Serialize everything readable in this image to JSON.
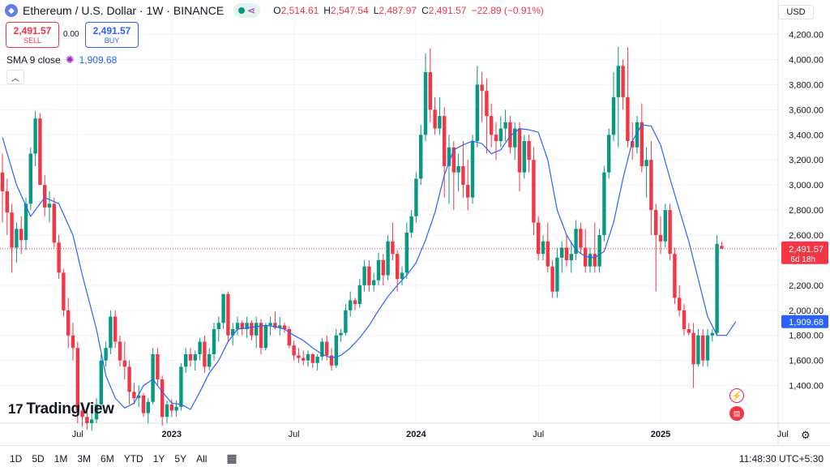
{
  "header": {
    "symbol": "Ethereum / U.S. Dollar · 1W · BINANCE",
    "open_label": "O",
    "open": "2,514.61",
    "high_label": "H",
    "high": "2,547.54",
    "low_label": "L",
    "low": "2,487.97",
    "close_label": "C",
    "close": "2,491.57",
    "change": "−22.89 (−0.91%)"
  },
  "trade": {
    "sell_price": "2,491.57",
    "sell_label": "SELL",
    "spread": "0.00",
    "buy_price": "2,491.57",
    "buy_label": "BUY"
  },
  "indicator": {
    "name": "SMA 9 close",
    "value": "1,909.68"
  },
  "currency": "USD",
  "logo_text": "TradingView",
  "bottom": {
    "ranges": [
      "1D",
      "5D",
      "1M",
      "3M",
      "6M",
      "YTD",
      "1Y",
      "5Y",
      "All"
    ],
    "clock": "11:48:30 UTC+5:30"
  },
  "colors": {
    "up": "#089981",
    "down": "#f23645",
    "sma": "#2962ff",
    "grid": "#f0f3fa"
  },
  "chart_data": {
    "type": "candlestick",
    "title": "Ethereum / U.S. Dollar · 1W · BINANCE",
    "ylim": [
      1100,
      4320
    ],
    "y_ticks": [
      1400,
      1600,
      1800,
      2000,
      2200,
      2400,
      2600,
      2800,
      3000,
      3200,
      3400,
      3600,
      3800,
      4000,
      4200
    ],
    "y_tick_labels": [
      "1,400.00",
      "1,600.00",
      "1,800.00",
      "2,000.00",
      "2,200.00",
      "2,400.00",
      "2,600.00",
      "2,800.00",
      "3,000.00",
      "3,200.00",
      "3,400.00",
      "3,600.00",
      "3,800.00",
      "4,000.00",
      "4,200.00"
    ],
    "x_ticks": [
      {
        "label": "Jul",
        "index": 16,
        "bold": false
      },
      {
        "label": "2023",
        "index": 36,
        "bold": true
      },
      {
        "label": "Jul",
        "index": 62,
        "bold": false
      },
      {
        "label": "2024",
        "index": 88,
        "bold": true
      },
      {
        "label": "Jul",
        "index": 114,
        "bold": false
      },
      {
        "label": "2025",
        "index": 140,
        "bold": true
      },
      {
        "label": "Jul",
        "index": 166,
        "bold": false
      }
    ],
    "last_price": 2491.57,
    "last_price_label": "2,491.57",
    "countdown": "6d 18h",
    "sma_last": 1909.68,
    "sma_last_label": "1,909.68",
    "candles": [
      [
        3100,
        3250,
        2700,
        2950
      ],
      [
        2950,
        3050,
        2600,
        2780
      ],
      [
        2780,
        2850,
        2300,
        2500
      ],
      [
        2500,
        2700,
        2380,
        2650
      ],
      [
        2650,
        2750,
        2450,
        2560
      ],
      [
        2560,
        2900,
        2480,
        2850
      ],
      [
        2850,
        3300,
        2800,
        3250
      ],
      [
        3250,
        3590,
        3150,
        3530
      ],
      [
        3530,
        3570,
        3000,
        3000
      ],
      [
        3000,
        3080,
        2750,
        2820
      ],
      [
        2820,
        2950,
        2700,
        2850
      ],
      [
        2850,
        2900,
        2500,
        2540
      ],
      [
        2540,
        2600,
        2250,
        2300
      ],
      [
        2300,
        2330,
        1950,
        2000
      ],
      [
        2000,
        2100,
        1700,
        1800
      ],
      [
        1800,
        1900,
        1600,
        1700
      ],
      [
        1700,
        1750,
        1100,
        1200
      ],
      [
        1200,
        1250,
        1070,
        1150
      ],
      [
        1150,
        1200,
        1050,
        1100
      ],
      [
        1100,
        1180,
        1040,
        1130
      ],
      [
        1130,
        1300,
        1100,
        1250
      ],
      [
        1250,
        1650,
        1200,
        1600
      ],
      [
        1600,
        1750,
        1550,
        1700
      ],
      [
        1700,
        2000,
        1650,
        1950
      ],
      [
        1950,
        2000,
        1700,
        1750
      ],
      [
        1750,
        1800,
        1550,
        1600
      ],
      [
        1600,
        1750,
        1450,
        1550
      ],
      [
        1550,
        1600,
        1250,
        1350
      ],
      [
        1350,
        1420,
        1250,
        1300
      ],
      [
        1300,
        1400,
        1230,
        1320
      ],
      [
        1320,
        1340,
        1150,
        1180
      ],
      [
        1180,
        1300,
        1100,
        1270
      ],
      [
        1270,
        1700,
        1250,
        1650
      ],
      [
        1650,
        1700,
        1400,
        1450
      ],
      [
        1450,
        1480,
        1080,
        1150
      ],
      [
        1150,
        1280,
        1100,
        1250
      ],
      [
        1250,
        1290,
        1150,
        1200
      ],
      [
        1200,
        1280,
        1150,
        1230
      ],
      [
        1230,
        1580,
        1200,
        1550
      ],
      [
        1550,
        1700,
        1500,
        1650
      ],
      [
        1650,
        1700,
        1550,
        1600
      ],
      [
        1600,
        1680,
        1520,
        1650
      ],
      [
        1650,
        1780,
        1600,
        1750
      ],
      [
        1750,
        1800,
        1500,
        1550
      ],
      [
        1550,
        1700,
        1520,
        1650
      ],
      [
        1650,
        1900,
        1600,
        1850
      ],
      [
        1850,
        1950,
        1750,
        1900
      ],
      [
        1900,
        2100,
        1850,
        2130
      ],
      [
        2130,
        2150,
        1750,
        1800
      ],
      [
        1800,
        1900,
        1720,
        1850
      ],
      [
        1850,
        1950,
        1800,
        1900
      ],
      [
        1900,
        1920,
        1800,
        1850
      ],
      [
        1850,
        1950,
        1780,
        1900
      ],
      [
        1900,
        1920,
        1760,
        1800
      ],
      [
        1800,
        1950,
        1700,
        1900
      ],
      [
        1900,
        1930,
        1650,
        1700
      ],
      [
        1700,
        1900,
        1680,
        1880
      ],
      [
        1880,
        1950,
        1800,
        1900
      ],
      [
        1900,
        1990,
        1850,
        1860
      ],
      [
        1860,
        1950,
        1800,
        1880
      ],
      [
        1880,
        1900,
        1820,
        1850
      ],
      [
        1850,
        1870,
        1700,
        1720
      ],
      [
        1720,
        1760,
        1600,
        1640
      ],
      [
        1640,
        1700,
        1580,
        1620
      ],
      [
        1620,
        1680,
        1560,
        1600
      ],
      [
        1600,
        1680,
        1550,
        1650
      ],
      [
        1650,
        1660,
        1540,
        1580
      ],
      [
        1580,
        1650,
        1520,
        1630
      ],
      [
        1630,
        1780,
        1600,
        1750
      ],
      [
        1750,
        1800,
        1600,
        1640
      ],
      [
        1640,
        1700,
        1520,
        1560
      ],
      [
        1560,
        1850,
        1540,
        1800
      ],
      [
        1800,
        1850,
        1750,
        1820
      ],
      [
        1820,
        2050,
        1800,
        2000
      ],
      [
        2000,
        2150,
        1950,
        2080
      ],
      [
        2080,
        2100,
        2000,
        2050
      ],
      [
        2050,
        2250,
        2020,
        2200
      ],
      [
        2200,
        2400,
        2150,
        2350
      ],
      [
        2350,
        2400,
        2150,
        2200
      ],
      [
        2200,
        2300,
        2150,
        2240
      ],
      [
        2240,
        2460,
        2200,
        2400
      ],
      [
        2400,
        2450,
        2200,
        2280
      ],
      [
        2280,
        2600,
        2240,
        2550
      ],
      [
        2550,
        2700,
        2400,
        2450
      ],
      [
        2450,
        2480,
        2150,
        2250
      ],
      [
        2250,
        2350,
        2200,
        2300
      ],
      [
        2300,
        2700,
        2250,
        2620
      ],
      [
        2620,
        2800,
        2580,
        2750
      ],
      [
        2750,
        3100,
        2700,
        3050
      ],
      [
        3050,
        3480,
        3000,
        3400
      ],
      [
        3400,
        4050,
        3350,
        3900
      ],
      [
        3900,
        4090,
        3500,
        3600
      ],
      [
        3600,
        3700,
        3400,
        3450
      ],
      [
        3450,
        3700,
        3400,
        3550
      ],
      [
        3550,
        3620,
        2900,
        3150
      ],
      [
        3150,
        3400,
        2850,
        3300
      ],
      [
        3300,
        3350,
        2800,
        3100
      ],
      [
        3100,
        3250,
        2950,
        3150
      ],
      [
        3150,
        3350,
        2900,
        3000
      ],
      [
        3000,
        3200,
        2800,
        2900
      ],
      [
        2900,
        3400,
        2850,
        3350
      ],
      [
        3350,
        3950,
        3300,
        3800
      ],
      [
        3800,
        3900,
        3500,
        3750
      ],
      [
        3750,
        3850,
        3250,
        3550
      ],
      [
        3550,
        3650,
        3300,
        3400
      ],
      [
        3400,
        3500,
        3200,
        3350
      ],
      [
        3350,
        3550,
        3300,
        3450
      ],
      [
        3450,
        3600,
        3350,
        3500
      ],
      [
        3500,
        3550,
        3250,
        3300
      ],
      [
        3300,
        3500,
        3200,
        3450
      ],
      [
        3450,
        3500,
        2950,
        3100
      ],
      [
        3100,
        3400,
        3050,
        3350
      ],
      [
        3350,
        3400,
        3100,
        3200
      ],
      [
        3200,
        3300,
        2600,
        2700
      ],
      [
        2700,
        2750,
        2400,
        2450
      ],
      [
        2450,
        2600,
        2400,
        2550
      ],
      [
        2550,
        2700,
        2300,
        2350
      ],
      [
        2350,
        2400,
        2100,
        2150
      ],
      [
        2150,
        2500,
        2100,
        2420
      ],
      [
        2420,
        2550,
        2300,
        2500
      ],
      [
        2500,
        2600,
        2350,
        2400
      ],
      [
        2400,
        2550,
        2300,
        2450
      ],
      [
        2450,
        2720,
        2400,
        2650
      ],
      [
        2650,
        2700,
        2450,
        2500
      ],
      [
        2500,
        2650,
        2300,
        2350
      ],
      [
        2350,
        2500,
        2300,
        2450
      ],
      [
        2450,
        2700,
        2300,
        2350
      ],
      [
        2350,
        2650,
        2300,
        2600
      ],
      [
        2600,
        3150,
        2550,
        3100
      ],
      [
        3100,
        3450,
        3050,
        3400
      ],
      [
        3400,
        3900,
        3350,
        3700
      ],
      [
        3700,
        4100,
        3300,
        3950
      ],
      [
        3950,
        4000,
        3600,
        3700
      ],
      [
        3700,
        4100,
        3300,
        3350
      ],
      [
        3350,
        3500,
        3200,
        3300
      ],
      [
        3300,
        3550,
        3250,
        3500
      ],
      [
        3500,
        3650,
        3100,
        3150
      ],
      [
        3150,
        3300,
        2900,
        3200
      ],
      [
        3200,
        3350,
        2600,
        2800
      ],
      [
        2800,
        2850,
        2150,
        2600
      ],
      [
        2600,
        2750,
        2450,
        2550
      ],
      [
        2550,
        2850,
        2500,
        2800
      ],
      [
        2800,
        2850,
        2400,
        2450
      ],
      [
        2450,
        2500,
        2050,
        2100
      ],
      [
        2100,
        2200,
        1950,
        2000
      ],
      [
        2000,
        2050,
        1800,
        1850
      ],
      [
        1850,
        1900,
        1800,
        1820
      ],
      [
        1820,
        1900,
        1380,
        1570
      ],
      [
        1570,
        1850,
        1550,
        1800
      ],
      [
        1800,
        1850,
        1550,
        1600
      ],
      [
        1600,
        1850,
        1550,
        1800
      ],
      [
        1800,
        1850,
        1750,
        1820
      ],
      [
        1820,
        2600,
        1800,
        2530
      ],
      [
        2514.61,
        2547.54,
        2487.97,
        2491.57
      ]
    ],
    "sma": [
      [
        0,
        3380
      ],
      [
        3,
        3000
      ],
      [
        6,
        2750
      ],
      [
        9,
        2900
      ],
      [
        12,
        2850
      ],
      [
        15,
        2600
      ],
      [
        17,
        2280
      ],
      [
        20,
        1850
      ],
      [
        22,
        1480
      ],
      [
        24,
        1300
      ],
      [
        26,
        1220
      ],
      [
        28,
        1260
      ],
      [
        30,
        1400
      ],
      [
        32,
        1450
      ],
      [
        34,
        1350
      ],
      [
        36,
        1260
      ],
      [
        38,
        1250
      ],
      [
        40,
        1210
      ],
      [
        42,
        1350
      ],
      [
        44,
        1500
      ],
      [
        46,
        1600
      ],
      [
        48,
        1750
      ],
      [
        50,
        1850
      ],
      [
        52,
        1860
      ],
      [
        54,
        1870
      ],
      [
        56,
        1880
      ],
      [
        58,
        1870
      ],
      [
        60,
        1850
      ],
      [
        62,
        1800
      ],
      [
        64,
        1760
      ],
      [
        66,
        1700
      ],
      [
        68,
        1650
      ],
      [
        70,
        1620
      ],
      [
        72,
        1640
      ],
      [
        74,
        1700
      ],
      [
        76,
        1780
      ],
      [
        78,
        1880
      ],
      [
        80,
        2000
      ],
      [
        82,
        2110
      ],
      [
        84,
        2200
      ],
      [
        86,
        2280
      ],
      [
        88,
        2380
      ],
      [
        90,
        2560
      ],
      [
        92,
        2780
      ],
      [
        94,
        3080
      ],
      [
        96,
        3280
      ],
      [
        98,
        3320
      ],
      [
        100,
        3350
      ],
      [
        102,
        3330
      ],
      [
        104,
        3250
      ],
      [
        106,
        3280
      ],
      [
        108,
        3390
      ],
      [
        110,
        3450
      ],
      [
        112,
        3440
      ],
      [
        114,
        3420
      ],
      [
        116,
        3200
      ],
      [
        118,
        2800
      ],
      [
        120,
        2600
      ],
      [
        122,
        2480
      ],
      [
        124,
        2430
      ],
      [
        126,
        2420
      ],
      [
        128,
        2470
      ],
      [
        130,
        2700
      ],
      [
        132,
        3050
      ],
      [
        134,
        3350
      ],
      [
        136,
        3480
      ],
      [
        138,
        3470
      ],
      [
        140,
        3320
      ],
      [
        142,
        3050
      ],
      [
        144,
        2800
      ],
      [
        146,
        2550
      ],
      [
        148,
        2250
      ],
      [
        150,
        1950
      ],
      [
        152,
        1800
      ],
      [
        154,
        1800
      ],
      [
        156,
        1909.68
      ]
    ]
  }
}
